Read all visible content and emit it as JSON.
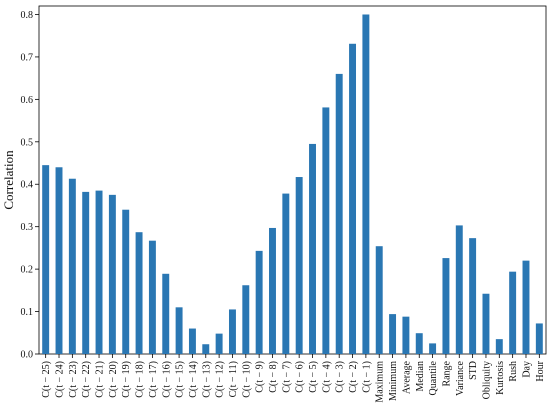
{
  "chart_data": {
    "type": "bar",
    "title": "",
    "xlabel": "",
    "ylabel": "Correlation",
    "ylim": [
      0,
      0.82
    ],
    "yticks": [
      "0.0",
      "0.1",
      "0.2",
      "0.3",
      "0.4",
      "0.5",
      "0.6",
      "0.7",
      "0.8"
    ],
    "grid": false,
    "legend": "none",
    "bar_color": "#2a77b3",
    "categories": [
      "C(t − 25)",
      "C(t − 24)",
      "C(t − 23)",
      "C(t − 22)",
      "C(t − 21)",
      "C(t − 20)",
      "C(t − 19)",
      "C(t − 18)",
      "C(t − 17)",
      "C(t − 16)",
      "C(t − 15)",
      "C(t − 14)",
      "C(t − 13)",
      "C(t − 12)",
      "C(t − 11)",
      "C(t − 10)",
      "C(t − 9)",
      "C(t − 8)",
      "C(t − 7)",
      "C(t − 6)",
      "C(t − 5)",
      "C(t − 4)",
      "C(t − 3)",
      "C(t − 2)",
      "C(t − 1)",
      "Maximum",
      "Minimum",
      "Average",
      "Median",
      "Quantile",
      "Range",
      "Variance",
      "STD",
      "Obliquity",
      "Kurtosis",
      "Rush",
      "Day",
      "Hour"
    ],
    "values": [
      0.445,
      0.44,
      0.413,
      0.382,
      0.385,
      0.375,
      0.34,
      0.287,
      0.267,
      0.189,
      0.11,
      0.06,
      0.023,
      0.048,
      0.105,
      0.162,
      0.243,
      0.297,
      0.378,
      0.417,
      0.495,
      0.581,
      0.66,
      0.731,
      0.8,
      0.254,
      0.094,
      0.088,
      0.049,
      0.025,
      0.226,
      0.303,
      0.273,
      0.142,
      0.035,
      0.194,
      0.22,
      0.072
    ]
  }
}
